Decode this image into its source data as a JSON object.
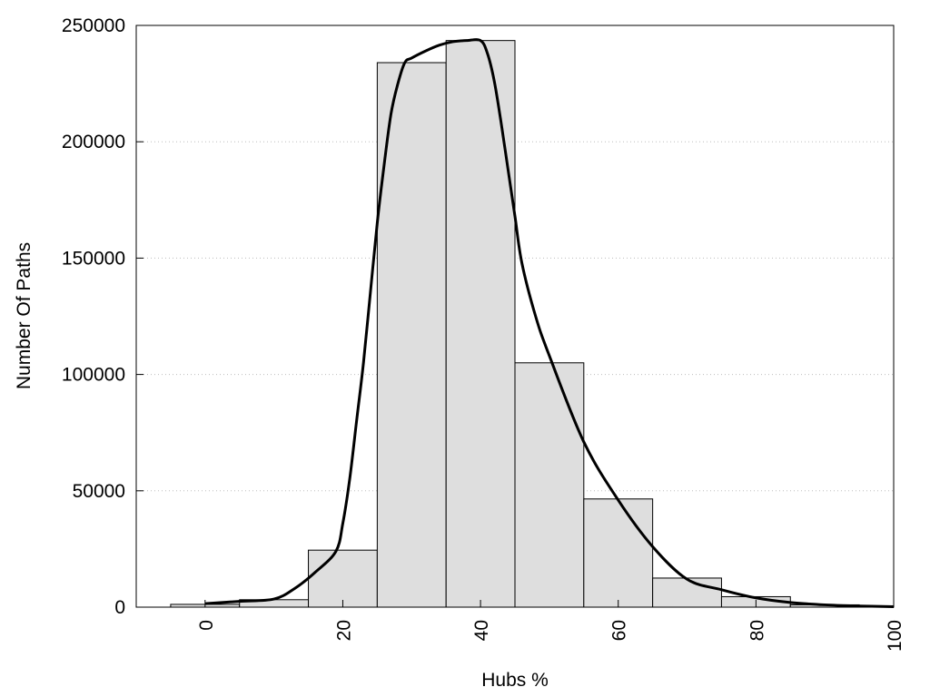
{
  "chart_data": {
    "type": "bar",
    "title": "",
    "xlabel": "Hubs %",
    "ylabel": "Number Of Paths",
    "xlim": [
      -10,
      100
    ],
    "ylim": [
      0,
      250000
    ],
    "grid": true,
    "x_ticks": [
      "0",
      "20",
      "40",
      "60",
      "80",
      "100"
    ],
    "x_tick_values": [
      0,
      20,
      40,
      60,
      80,
      100
    ],
    "y_ticks": [
      "0",
      "50000",
      "100000",
      "150000",
      "200000",
      "250000"
    ],
    "y_tick_values": [
      0,
      50000,
      100000,
      150000,
      200000,
      250000
    ],
    "bin_width": 10,
    "bins": [
      {
        "center": 0,
        "value": 1200
      },
      {
        "center": 10,
        "value": 3200
      },
      {
        "center": 20,
        "value": 24500
      },
      {
        "center": 30,
        "value": 234000
      },
      {
        "center": 40,
        "value": 243500
      },
      {
        "center": 50,
        "value": 105000
      },
      {
        "center": 60,
        "value": 46500
      },
      {
        "center": 70,
        "value": 12500
      },
      {
        "center": 80,
        "value": 4500
      },
      {
        "center": 90,
        "value": 1000
      }
    ],
    "curve": {
      "x": [
        0,
        5,
        10,
        13,
        16,
        19,
        20,
        21,
        22,
        23,
        24,
        25,
        26,
        27,
        28,
        29,
        30,
        32,
        34,
        36,
        38,
        40,
        41,
        42,
        43,
        44,
        45,
        46,
        48,
        50,
        55,
        60,
        65,
        70,
        75,
        80,
        85,
        90,
        95,
        100
      ],
      "y": [
        1500,
        2500,
        3500,
        8000,
        15000,
        24000,
        36000,
        55000,
        80000,
        105000,
        135000,
        165000,
        190000,
        212000,
        225000,
        234000,
        236000,
        239000,
        241500,
        243000,
        243500,
        243500,
        238000,
        226000,
        208000,
        188000,
        168000,
        148000,
        125000,
        108000,
        71000,
        46000,
        26000,
        12000,
        7500,
        4000,
        2000,
        1000,
        500,
        200
      ]
    },
    "colors": {
      "bar_fill": "#dedede",
      "bar_stroke": "#000000",
      "curve": "#000000"
    }
  }
}
